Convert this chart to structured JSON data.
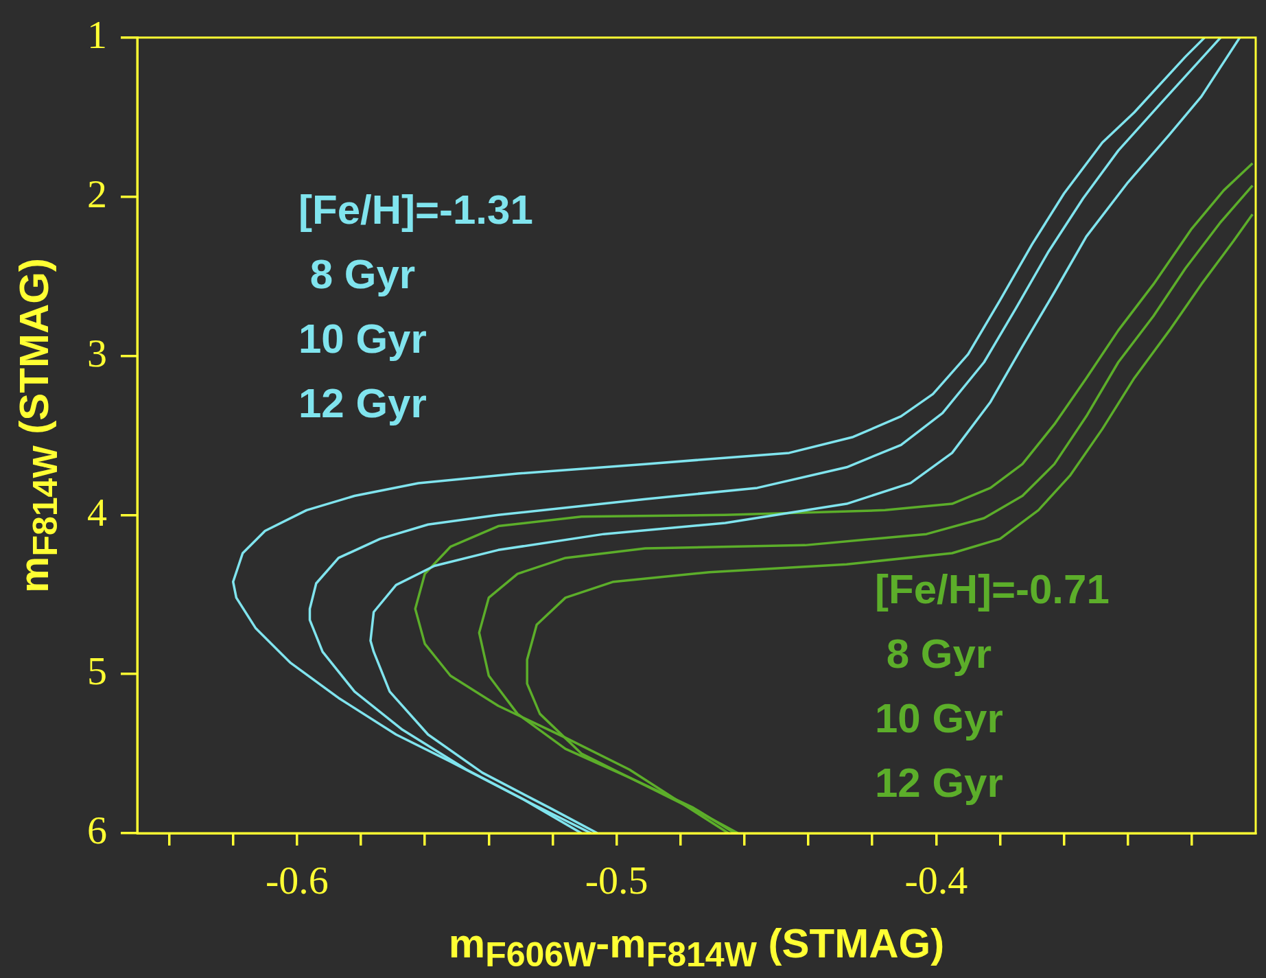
{
  "chart_data": {
    "type": "line",
    "xlabel": "m$_{F606W}$-m$_{F814W}$ (STMAG)",
    "ylabel": "m$_{F814W}$ (STMAG)",
    "xlim": [
      -0.65,
      -0.3
    ],
    "ylim": [
      6,
      1
    ],
    "xticks": [
      {
        "value": -0.64,
        "label": null
      },
      {
        "value": -0.62,
        "label": null
      },
      -0.6,
      {
        "value": -0.58,
        "label": null
      },
      {
        "value": -0.56,
        "label": null
      },
      {
        "value": -0.54,
        "label": null
      },
      {
        "value": -0.52,
        "label": null
      },
      -0.5,
      {
        "value": -0.48,
        "label": null
      },
      {
        "value": -0.46,
        "label": null
      },
      {
        "value": -0.44,
        "label": null
      },
      {
        "value": -0.42,
        "label": null
      },
      -0.4,
      {
        "value": -0.38,
        "label": null
      },
      {
        "value": -0.36,
        "label": null
      },
      {
        "value": -0.34,
        "label": null
      },
      {
        "value": -0.32,
        "label": null
      }
    ],
    "yticks": [
      1,
      2,
      3,
      4,
      5,
      6
    ],
    "annotations": [
      "[Fe/H]=-1.31",
      " 8 Gyr",
      "10 Gyr",
      "12 Gyr",
      "[Fe/H]=-0.71",
      " 8 Gyr",
      "10 Gyr",
      "12 Gyr"
    ],
    "series": [
      {
        "color": "#80e4ee",
        "x": [
          -0.511,
          -0.529,
          -0.552,
          -0.569,
          -0.587,
          -0.602,
          -0.613,
          -0.619,
          -0.62,
          -0.617,
          -0.61,
          -0.597,
          -0.582,
          -0.562,
          -0.531,
          -0.491,
          -0.446,
          -0.426,
          -0.411,
          -0.401,
          -0.39,
          -0.38,
          -0.37,
          -0.36,
          -0.348,
          -0.338,
          -0.322,
          -0.316
        ],
        "values": [
          6.0,
          5.79,
          5.55,
          5.38,
          5.15,
          4.93,
          4.71,
          4.52,
          4.42,
          4.24,
          4.1,
          3.97,
          3.88,
          3.8,
          3.74,
          3.68,
          3.61,
          3.51,
          3.38,
          3.24,
          2.99,
          2.65,
          2.3,
          1.98,
          1.66,
          1.47,
          1.12,
          1.0
        ]
      },
      {
        "color": "#80e4ee",
        "x": [
          -0.508,
          -0.526,
          -0.547,
          -0.567,
          -0.582,
          -0.592,
          -0.596,
          -0.596,
          -0.594,
          -0.587,
          -0.574,
          -0.559,
          -0.537,
          -0.491,
          -0.456,
          -0.428,
          -0.411,
          -0.398,
          -0.385,
          -0.375,
          -0.365,
          -0.354,
          -0.343,
          -0.33,
          -0.311
        ],
        "values": [
          6.0,
          5.82,
          5.6,
          5.35,
          5.11,
          4.86,
          4.66,
          4.59,
          4.43,
          4.27,
          4.15,
          4.06,
          4.0,
          3.9,
          3.83,
          3.7,
          3.56,
          3.36,
          3.04,
          2.7,
          2.35,
          2.01,
          1.71,
          1.42,
          1.0
        ]
      },
      {
        "color": "#80e4ee",
        "x": [
          -0.506,
          -0.521,
          -0.542,
          -0.559,
          -0.571,
          -0.576,
          -0.577,
          -0.576,
          -0.569,
          -0.557,
          -0.537,
          -0.504,
          -0.466,
          -0.428,
          -0.408,
          -0.395,
          -0.383,
          -0.373,
          -0.363,
          -0.353,
          -0.34,
          -0.327,
          -0.317,
          -0.305
        ],
        "values": [
          6.0,
          5.84,
          5.62,
          5.38,
          5.11,
          4.86,
          4.79,
          4.61,
          4.44,
          4.32,
          4.22,
          4.12,
          4.05,
          3.93,
          3.8,
          3.61,
          3.29,
          2.94,
          2.6,
          2.25,
          1.91,
          1.61,
          1.37,
          1.0
        ]
      },
      {
        "color": "#5cae2a",
        "x": [
          -0.465,
          -0.479,
          -0.496,
          -0.516,
          -0.537,
          -0.552,
          -0.56,
          -0.563,
          -0.56,
          -0.552,
          -0.537,
          -0.511,
          -0.466,
          -0.416,
          -0.395,
          -0.383,
          -0.373,
          -0.363,
          -0.353,
          -0.343,
          -0.332,
          -0.32,
          -0.31,
          -0.301
        ],
        "values": [
          6.0,
          5.82,
          5.6,
          5.4,
          5.2,
          5.01,
          4.81,
          4.59,
          4.37,
          4.2,
          4.07,
          4.01,
          4.0,
          3.97,
          3.93,
          3.83,
          3.68,
          3.43,
          3.14,
          2.84,
          2.55,
          2.2,
          1.96,
          1.79
        ]
      },
      {
        "color": "#5cae2a",
        "x": [
          -0.463,
          -0.476,
          -0.496,
          -0.516,
          -0.531,
          -0.54,
          -0.543,
          -0.54,
          -0.531,
          -0.516,
          -0.491,
          -0.441,
          -0.403,
          -0.385,
          -0.373,
          -0.363,
          -0.353,
          -0.343,
          -0.332,
          -0.322,
          -0.311,
          -0.301
        ],
        "values": [
          6.0,
          5.84,
          5.65,
          5.47,
          5.25,
          5.01,
          4.74,
          4.52,
          4.37,
          4.27,
          4.21,
          4.19,
          4.12,
          4.02,
          3.88,
          3.68,
          3.38,
          3.04,
          2.75,
          2.45,
          2.16,
          1.93
        ]
      },
      {
        "color": "#5cae2a",
        "x": [
          -0.462,
          -0.474,
          -0.491,
          -0.511,
          -0.524,
          -0.528,
          -0.528,
          -0.525,
          -0.516,
          -0.501,
          -0.471,
          -0.428,
          -0.395,
          -0.38,
          -0.368,
          -0.358,
          -0.348,
          -0.338,
          -0.327,
          -0.317,
          -0.307,
          -0.301
        ],
        "values": [
          6.0,
          5.87,
          5.7,
          5.5,
          5.25,
          5.06,
          4.91,
          4.69,
          4.52,
          4.42,
          4.36,
          4.31,
          4.24,
          4.15,
          3.97,
          3.75,
          3.46,
          3.14,
          2.84,
          2.55,
          2.28,
          2.11
        ]
      }
    ]
  }
}
